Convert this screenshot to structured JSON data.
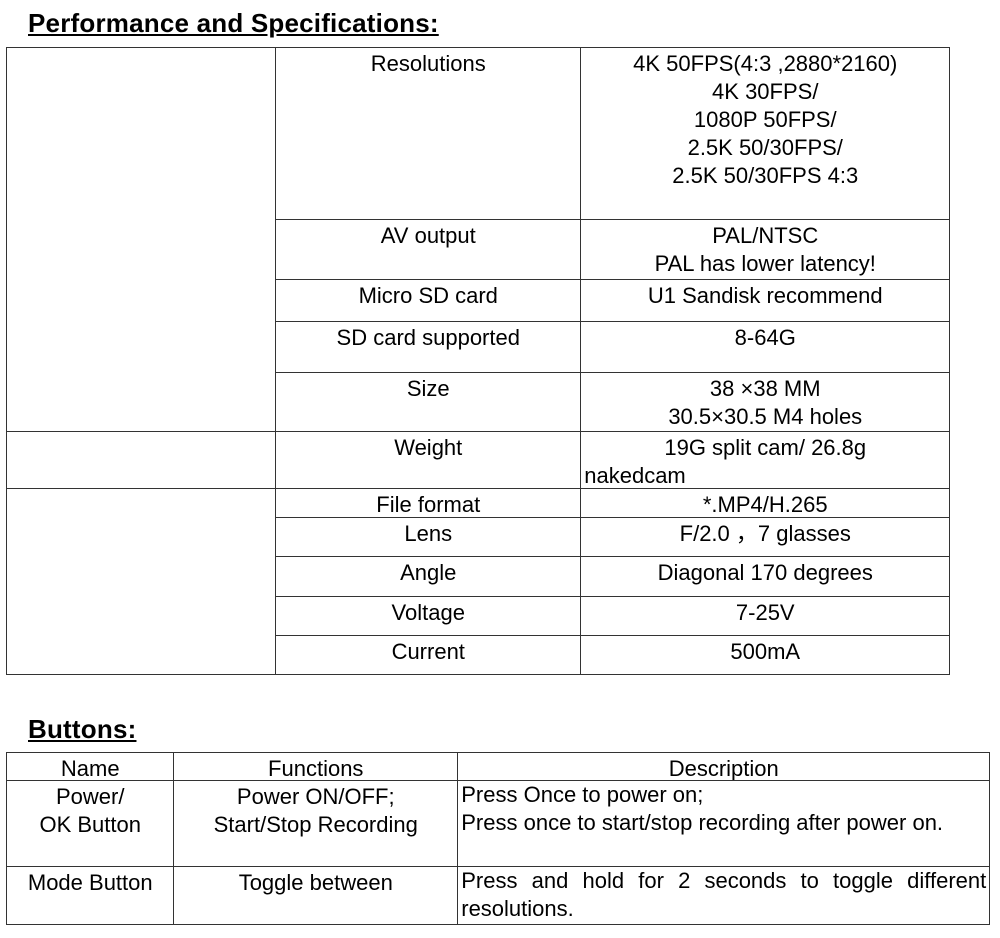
{
  "spec_title": "Performance and Specifications:",
  "specs": [
    {
      "label": "Resolutions",
      "value": [
        "4K 50FPS(4:3 ,2880*2160)",
        "4K 30FPS/",
        "1080P 50FPS/",
        "2.5K 50/30FPS/",
        "2.5K 50/30FPS 4:3"
      ]
    },
    {
      "label": "AV output",
      "value": [
        "PAL/NTSC",
        "PAL has lower latency!"
      ]
    },
    {
      "label": "Micro SD card",
      "value": [
        "U1 Sandisk recommend"
      ]
    },
    {
      "label": "SD card supported",
      "value": [
        "8-64G"
      ]
    },
    {
      "label": "Size",
      "value": [
        "38 ×38  MM",
        "30.5×30.5 M4 holes"
      ]
    },
    {
      "label": "Weight",
      "value": [
        "19G split cam/ 26.8g",
        "nakedcam"
      ]
    },
    {
      "label": "File format",
      "value": [
        "*.MP4/H.265"
      ]
    },
    {
      "label": "Lens",
      "value": [
        "F/2.0 ，7 glasses"
      ]
    },
    {
      "label": "Angle",
      "value": [
        "Diagonal 170 degrees"
      ]
    },
    {
      "label": "Voltage",
      "value": [
        "7-25V"
      ]
    },
    {
      "label": "Current",
      "value": [
        "500mA"
      ]
    }
  ],
  "buttons_title": "Buttons:",
  "buttons_headers": [
    "Name",
    "Functions",
    "Description"
  ],
  "buttons": [
    {
      "name": [
        "Power/",
        "OK Button"
      ],
      "functions": [
        "Power ON/OFF;",
        "Start/Stop Recording"
      ],
      "description": [
        "Press Once to power on;",
        "Press once to start/stop recording after power on."
      ]
    },
    {
      "name": [
        "Mode Button"
      ],
      "functions": [
        "Toggle between"
      ],
      "description": [
        "Press and hold for 2 seconds to toggle different resolutions."
      ]
    }
  ]
}
